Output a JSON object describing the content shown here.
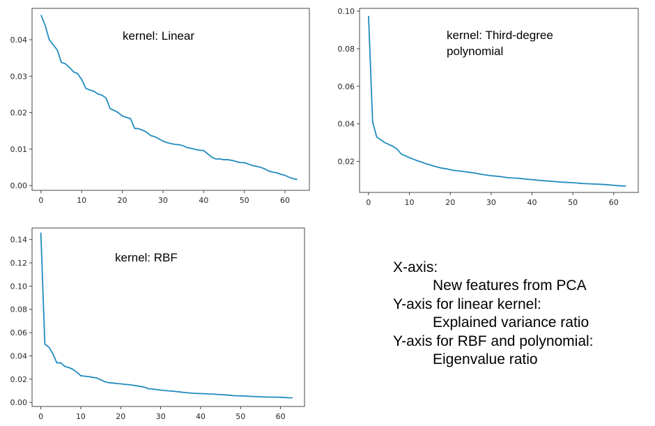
{
  "chart_data": [
    {
      "type": "line",
      "annotation": [
        "kernel: Linear"
      ],
      "xlim": [
        -2.2,
        66
      ],
      "ylim": [
        -0.0013,
        0.0486
      ],
      "xticks": [
        0,
        10,
        20,
        30,
        40,
        50,
        60
      ],
      "yticks": [
        0.0,
        0.01,
        0.02,
        0.03,
        0.04
      ],
      "ytick_labels": [
        "0.00",
        "0.01",
        "0.02",
        "0.03",
        "0.04"
      ],
      "color": "#1f8bbd",
      "x": [
        0,
        1,
        2,
        3,
        4,
        5,
        6,
        7,
        8,
        9,
        10,
        11,
        12,
        13,
        14,
        15,
        16,
        17,
        18,
        19,
        20,
        21,
        22,
        23,
        24,
        25,
        26,
        27,
        28,
        29,
        30,
        31,
        32,
        33,
        34,
        35,
        36,
        37,
        38,
        39,
        40,
        41,
        42,
        43,
        44,
        45,
        46,
        47,
        48,
        49,
        50,
        51,
        52,
        53,
        54,
        55,
        56,
        57,
        58,
        59,
        60,
        61,
        62,
        63
      ],
      "y": [
        0.0468,
        0.044,
        0.0401,
        0.0386,
        0.0372,
        0.0338,
        0.0334,
        0.0324,
        0.0312,
        0.0307,
        0.0291,
        0.0267,
        0.0262,
        0.0259,
        0.0251,
        0.0248,
        0.024,
        0.0211,
        0.0206,
        0.02,
        0.0191,
        0.0187,
        0.0184,
        0.0157,
        0.0156,
        0.0152,
        0.0146,
        0.0137,
        0.0134,
        0.0128,
        0.0122,
        0.0118,
        0.0115,
        0.0113,
        0.0112,
        0.0109,
        0.0104,
        0.0102,
        0.0099,
        0.0097,
        0.0096,
        0.0087,
        0.0078,
        0.0073,
        0.0073,
        0.0071,
        0.0071,
        0.0069,
        0.0066,
        0.0063,
        0.0063,
        0.0059,
        0.0055,
        0.0053,
        0.005,
        0.0046,
        0.004,
        0.0037,
        0.0035,
        0.0031,
        0.0028,
        0.0023,
        0.0019,
        0.0017
      ]
    },
    {
      "type": "line",
      "annotation": [
        "kernel: Third-degree",
        "polynomial"
      ],
      "xlim": [
        -2.2,
        66
      ],
      "ylim": [
        0.0035,
        0.1015
      ],
      "xticks": [
        0,
        10,
        20,
        30,
        40,
        50,
        60
      ],
      "yticks": [
        0.02,
        0.04,
        0.06,
        0.08,
        0.1
      ],
      "ytick_labels": [
        "0.02",
        "0.04",
        "0.06",
        "0.08",
        "0.10"
      ],
      "color": "#1f8bbd",
      "x": [
        0,
        1,
        2,
        3,
        4,
        5,
        6,
        7,
        8,
        9,
        10,
        11,
        12,
        13,
        14,
        15,
        16,
        17,
        18,
        19,
        20,
        21,
        22,
        23,
        24,
        25,
        26,
        27,
        28,
        29,
        30,
        31,
        32,
        33,
        34,
        35,
        36,
        37,
        38,
        39,
        40,
        41,
        42,
        43,
        44,
        45,
        46,
        47,
        48,
        49,
        50,
        51,
        52,
        53,
        54,
        55,
        56,
        57,
        58,
        59,
        60,
        61,
        62,
        63
      ],
      "y": [
        0.0975,
        0.041,
        0.033,
        0.0315,
        0.03,
        0.029,
        0.028,
        0.0265,
        0.024,
        0.023,
        0.022,
        0.0212,
        0.0203,
        0.0197,
        0.0188,
        0.0182,
        0.0175,
        0.0169,
        0.0164,
        0.0161,
        0.0156,
        0.0152,
        0.015,
        0.0147,
        0.0144,
        0.0141,
        0.0138,
        0.0134,
        0.013,
        0.0127,
        0.0124,
        0.0122,
        0.012,
        0.0117,
        0.0114,
        0.0112,
        0.0111,
        0.011,
        0.0107,
        0.0105,
        0.0103,
        0.0101,
        0.0099,
        0.0097,
        0.0096,
        0.0094,
        0.0092,
        0.009,
        0.0089,
        0.0088,
        0.0087,
        0.0085,
        0.0083,
        0.0082,
        0.0081,
        0.008,
        0.0079,
        0.0078,
        0.0077,
        0.0075,
        0.0073,
        0.0071,
        0.007,
        0.0069
      ]
    },
    {
      "type": "line",
      "annotation": [
        "kernel: RBF"
      ],
      "xlim": [
        -2.2,
        66
      ],
      "ylim": [
        -0.0035,
        0.15
      ],
      "xticks": [
        0,
        10,
        20,
        30,
        40,
        50,
        60
      ],
      "yticks": [
        0.0,
        0.02,
        0.04,
        0.06,
        0.08,
        0.1,
        0.12,
        0.14
      ],
      "ytick_labels": [
        "0.00",
        "0.02",
        "0.04",
        "0.06",
        "0.08",
        "0.10",
        "0.12",
        "0.14"
      ],
      "color": "#1f8bbd",
      "x": [
        0,
        1,
        2,
        3,
        4,
        5,
        6,
        7,
        8,
        9,
        10,
        11,
        12,
        13,
        14,
        15,
        16,
        17,
        18,
        19,
        20,
        21,
        22,
        23,
        24,
        25,
        26,
        27,
        28,
        29,
        30,
        31,
        32,
        33,
        34,
        35,
        36,
        37,
        38,
        39,
        40,
        41,
        42,
        43,
        44,
        45,
        46,
        47,
        48,
        49,
        50,
        51,
        52,
        53,
        54,
        55,
        56,
        57,
        58,
        59,
        60,
        61,
        62,
        63
      ],
      "y": [
        0.146,
        0.05,
        0.0475,
        0.042,
        0.034,
        0.034,
        0.031,
        0.03,
        0.0285,
        0.026,
        0.023,
        0.0225,
        0.0222,
        0.0215,
        0.021,
        0.0195,
        0.0178,
        0.017,
        0.0167,
        0.0162,
        0.016,
        0.0155,
        0.0153,
        0.0148,
        0.0143,
        0.0137,
        0.013,
        0.0118,
        0.0115,
        0.011,
        0.0106,
        0.0102,
        0.0099,
        0.0097,
        0.0093,
        0.0089,
        0.0085,
        0.0082,
        0.0079,
        0.0077,
        0.0076,
        0.0075,
        0.0073,
        0.0072,
        0.0069,
        0.0067,
        0.0065,
        0.0062,
        0.0059,
        0.0057,
        0.0056,
        0.0055,
        0.0053,
        0.0051,
        0.005,
        0.0048,
        0.0047,
        0.0046,
        0.0045,
        0.0045,
        0.0044,
        0.0042,
        0.004,
        0.0039
      ]
    }
  ],
  "legend_text": {
    "line1": "X-axis:",
    "line2": "New features from PCA",
    "line3": "Y-axis for linear kernel:",
    "line4": "Explained variance ratio",
    "line5": "Y-axis for RBF and polynomial:",
    "line6": "Eigenvalue ratio"
  }
}
